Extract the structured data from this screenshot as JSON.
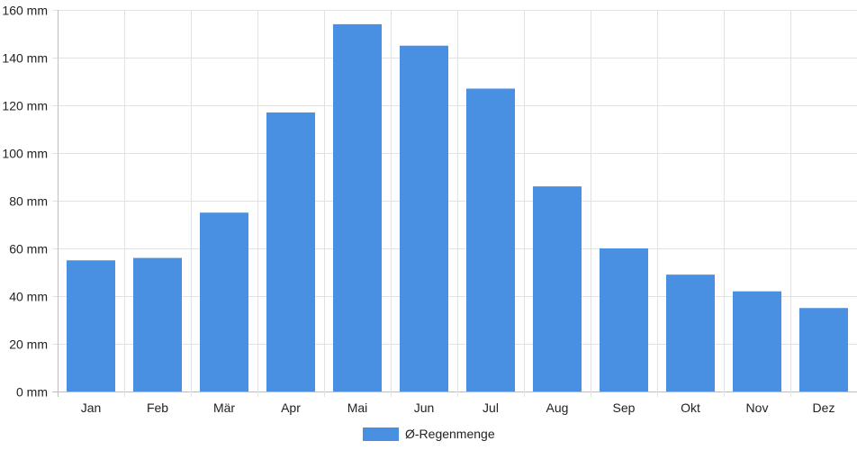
{
  "chart_data": {
    "type": "bar",
    "categories": [
      "Jan",
      "Feb",
      "Mär",
      "Apr",
      "Mai",
      "Jun",
      "Jul",
      "Aug",
      "Sep",
      "Okt",
      "Nov",
      "Dez"
    ],
    "series": [
      {
        "name": "Ø-Regenmenge",
        "values": [
          55,
          56,
          75,
          117,
          154,
          145,
          127,
          86,
          60,
          49,
          42,
          35
        ],
        "color": "#4a90e2"
      }
    ],
    "yticks": [
      "0 mm",
      "20 mm",
      "40 mm",
      "60 mm",
      "80 mm",
      "100 mm",
      "120 mm",
      "140 mm",
      "160 mm"
    ],
    "ylim": [
      0,
      160
    ],
    "ytick_values": [
      0,
      20,
      40,
      60,
      80,
      100,
      120,
      140,
      160
    ],
    "grid": true,
    "legend_position": "bottom"
  }
}
